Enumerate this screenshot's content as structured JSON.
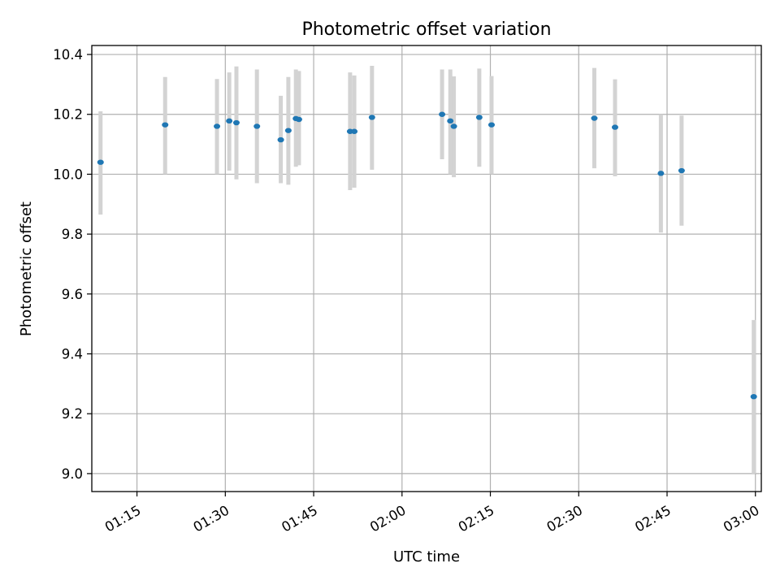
{
  "chart_data": {
    "type": "scatter",
    "title": "Photometric offset variation",
    "xlabel": "UTC time",
    "ylabel": "Photometric offset",
    "x_is_time": true,
    "xlim": [
      "01:07:20",
      "03:01:00"
    ],
    "ylim": [
      8.94,
      10.43
    ],
    "x_ticks": [
      "01:15",
      "01:30",
      "01:45",
      "02:00",
      "02:15",
      "02:30",
      "02:45",
      "03:00"
    ],
    "y_ticks": [
      "9.0",
      "9.2",
      "9.4",
      "9.6",
      "9.8",
      "10.0",
      "10.2",
      "10.4"
    ],
    "grid": true,
    "colors": {
      "marker": "#1f77b4",
      "errorbar": "#d3d3d3"
    },
    "series": [
      {
        "points": [
          {
            "x": "01:08:49",
            "y": 10.04,
            "ymin": 9.865,
            "ymax": 10.21
          },
          {
            "x": "01:19:47",
            "y": 10.165,
            "ymin": 10.0,
            "ymax": 10.325
          },
          {
            "x": "01:28:35",
            "y": 10.16,
            "ymin": 10.0,
            "ymax": 10.318
          },
          {
            "x": "01:30:40",
            "y": 10.178,
            "ymin": 10.012,
            "ymax": 10.34
          },
          {
            "x": "01:31:53",
            "y": 10.172,
            "ymin": 9.983,
            "ymax": 10.36
          },
          {
            "x": "01:35:22",
            "y": 10.16,
            "ymin": 9.97,
            "ymax": 10.35
          },
          {
            "x": "01:39:25",
            "y": 10.115,
            "ymin": 9.97,
            "ymax": 10.262
          },
          {
            "x": "01:40:42",
            "y": 10.146,
            "ymin": 9.965,
            "ymax": 10.325
          },
          {
            "x": "01:41:59",
            "y": 10.186,
            "ymin": 10.025,
            "ymax": 10.35
          },
          {
            "x": "01:42:30",
            "y": 10.183,
            "ymin": 10.03,
            "ymax": 10.345
          },
          {
            "x": "01:51:11",
            "y": 10.143,
            "ymin": 9.947,
            "ymax": 10.34
          },
          {
            "x": "01:51:54",
            "y": 10.143,
            "ymin": 9.955,
            "ymax": 10.33
          },
          {
            "x": "01:54:54",
            "y": 10.19,
            "ymin": 10.015,
            "ymax": 10.362
          },
          {
            "x": "02:06:48",
            "y": 10.2,
            "ymin": 10.05,
            "ymax": 10.35
          },
          {
            "x": "02:08:12",
            "y": 10.178,
            "ymin": 10.0,
            "ymax": 10.35
          },
          {
            "x": "02:08:48",
            "y": 10.16,
            "ymin": 9.99,
            "ymax": 10.327
          },
          {
            "x": "02:13:07",
            "y": 10.19,
            "ymin": 10.025,
            "ymax": 10.353
          },
          {
            "x": "02:15:12",
            "y": 10.165,
            "ymin": 10.0,
            "ymax": 10.328
          },
          {
            "x": "02:32:39",
            "y": 10.187,
            "ymin": 10.02,
            "ymax": 10.355
          },
          {
            "x": "02:36:10",
            "y": 10.157,
            "ymin": 9.993,
            "ymax": 10.317
          },
          {
            "x": "02:43:57",
            "y": 10.003,
            "ymin": 9.805,
            "ymax": 10.2
          },
          {
            "x": "02:47:28",
            "y": 10.012,
            "ymin": 9.828,
            "ymax": 10.196
          },
          {
            "x": "02:59:43",
            "y": 9.257,
            "ymin": 9.0,
            "ymax": 9.513
          }
        ]
      }
    ]
  }
}
